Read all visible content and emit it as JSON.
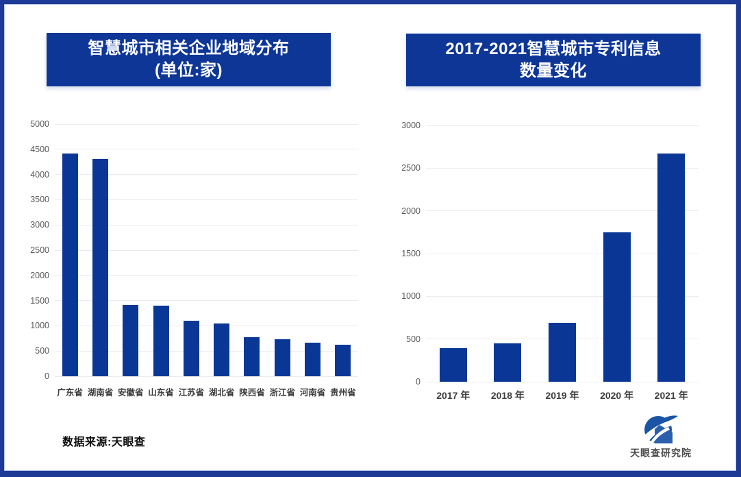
{
  "colors": {
    "bar": "#0a3796",
    "title_bg": "#0d3697",
    "title_text": "#ffffff",
    "grid": "#ebebeb",
    "axis_label": "#595959",
    "category_label": "#3d3d3d",
    "frame_border": "#1d3a96"
  },
  "chart_data": [
    {
      "type": "bar",
      "title": "智慧城市相关企业地域分布 (单位:家)",
      "title_lines": [
        "智慧城市相关企业地域分布",
        "(单位:家)"
      ],
      "categories": [
        "广东省",
        "湖南省",
        "安徽省",
        "山东省",
        "江苏省",
        "湖北省",
        "陕西省",
        "浙江省",
        "河南省",
        "贵州省"
      ],
      "values": [
        4420,
        4310,
        1420,
        1400,
        1100,
        1050,
        780,
        730,
        670,
        620
      ],
      "xlabel": "",
      "ylabel": "",
      "ylim": [
        0,
        5000
      ],
      "yticks": [
        0,
        500,
        1000,
        1500,
        2000,
        2500,
        3000,
        3500,
        4000,
        4500,
        5000
      ],
      "grid": true,
      "legend": false
    },
    {
      "type": "bar",
      "title": "2017-2021智慧城市专利信息 数量变化",
      "title_lines": [
        "2017-2021智慧城市专利信息",
        "数量变化"
      ],
      "categories": [
        "2017 年",
        "2018 年",
        "2019 年",
        "2020 年",
        "2021 年"
      ],
      "values": [
        390,
        450,
        690,
        1750,
        2670
      ],
      "xlabel": "",
      "ylabel": "",
      "ylim": [
        0,
        3000
      ],
      "yticks": [
        0,
        500,
        1000,
        1500,
        2000,
        2500,
        3000
      ],
      "grid": true,
      "legend": false
    }
  ],
  "source_note": "数据来源:天眼查",
  "logo": {
    "text": "天眼查研究院"
  }
}
